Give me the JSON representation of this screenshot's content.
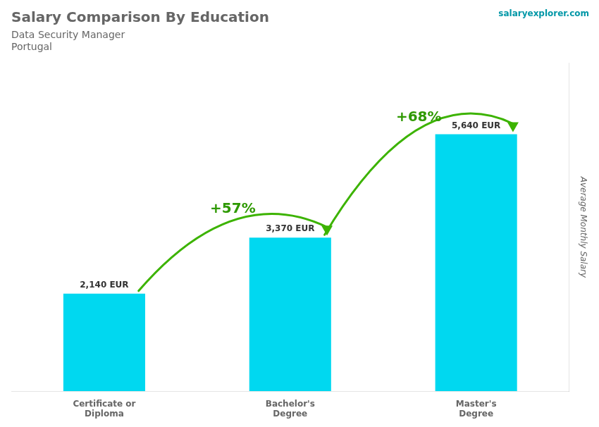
{
  "chart_data": {
    "type": "bar",
    "title": "Salary Comparison By Education",
    "subtitle": "Data Security Manager",
    "country": "Portugal",
    "website": "salaryexplorer.com",
    "ylabel": "Average Monthly Salary",
    "categories": [
      "Certificate or\nDiploma",
      "Bachelor's\nDegree",
      "Master's\nDegree"
    ],
    "values": [
      2140,
      3370,
      5640
    ],
    "value_labels": [
      "2,140 EUR",
      "3,370 EUR",
      "5,640 EUR"
    ],
    "data_labels": true,
    "change_labels": [
      "+57%",
      "+68%"
    ],
    "color": "#00d8f0",
    "ylim": [
      0,
      7200
    ],
    "grid": false,
    "tick_labels": "x"
  }
}
